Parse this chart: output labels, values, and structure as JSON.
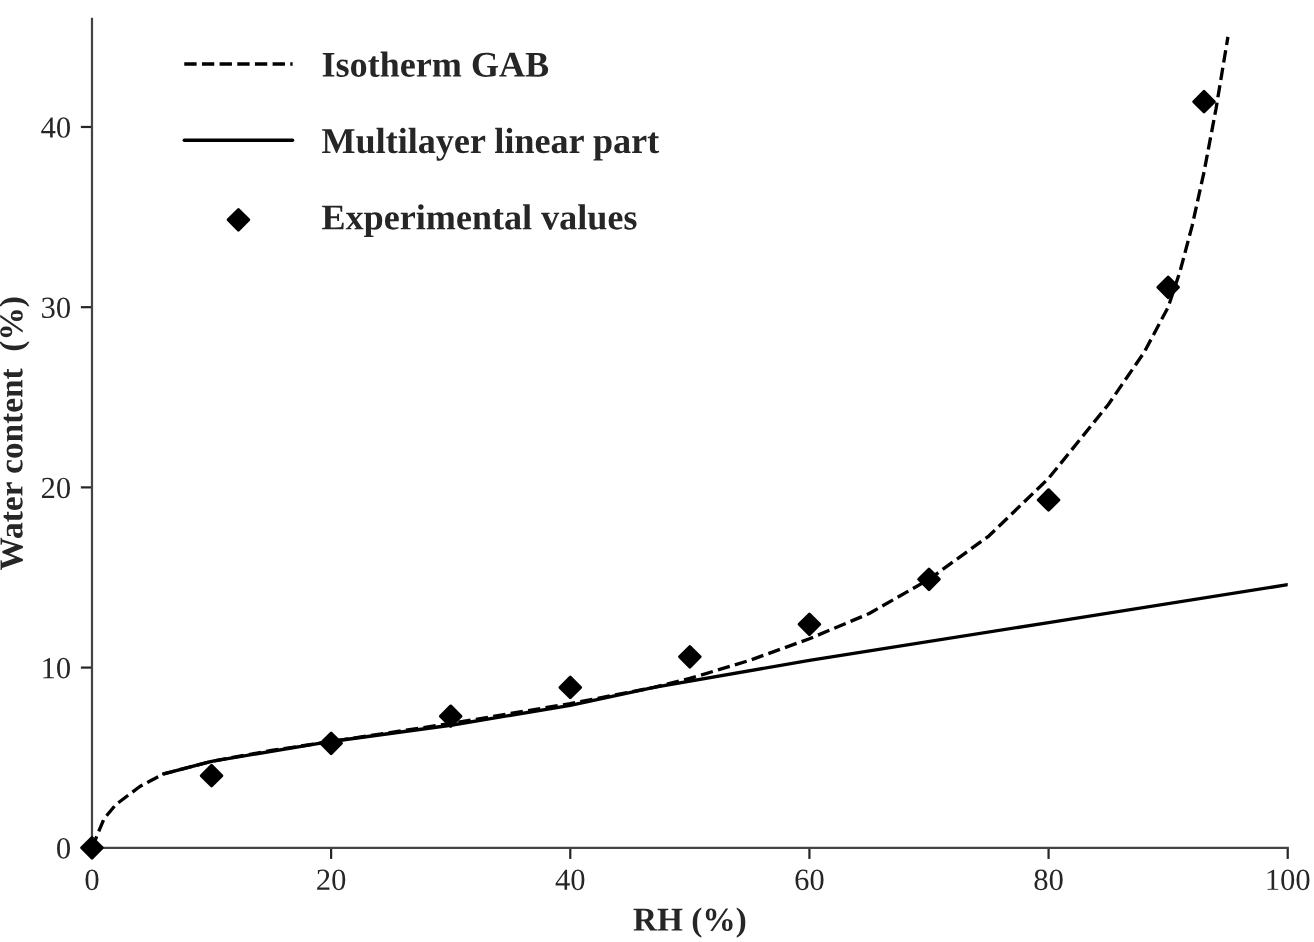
{
  "chart_data": {
    "type": "line",
    "xlabel": "RH (%)",
    "ylabel": "Water content  (%)",
    "xlim": [
      0,
      100
    ],
    "ylim": [
      0,
      46
    ],
    "xticks": [
      0,
      20,
      40,
      60,
      80,
      100
    ],
    "yticks": [
      0,
      10,
      20,
      30,
      40
    ],
    "grid": false,
    "legend": "top left",
    "series": [
      {
        "name": "Isotherm GAB",
        "line_style": "dashed",
        "color": "#000000",
        "x": [
          0,
          1,
          2,
          4,
          6,
          10,
          15,
          20,
          30,
          40,
          47,
          50,
          55,
          60,
          65,
          70,
          75,
          80,
          85,
          88,
          90,
          91,
          92,
          93,
          94,
          95
        ],
        "values": [
          0,
          1.6,
          2.4,
          3.4,
          4.1,
          4.8,
          5.4,
          5.9,
          6.9,
          8.0,
          8.9,
          9.4,
          10.4,
          11.6,
          13.0,
          14.9,
          17.3,
          20.5,
          24.6,
          27.5,
          30.0,
          32.0,
          34.5,
          37.5,
          41.0,
          45.0
        ]
      },
      {
        "name": "Multilayer linear part",
        "line_style": "solid",
        "color": "#000000",
        "x": [
          6,
          10,
          20,
          30,
          40,
          47,
          60,
          80,
          100
        ],
        "values": [
          4.1,
          4.8,
          5.9,
          6.8,
          7.9,
          8.9,
          10.4,
          12.5,
          14.6
        ]
      },
      {
        "name": "Experimental values",
        "type": "scatter",
        "marker": "diamond",
        "color": "#000000",
        "x": [
          0,
          10,
          20,
          30,
          40,
          50,
          60,
          70,
          80,
          90,
          93
        ],
        "values": [
          0,
          4.0,
          5.8,
          7.3,
          8.9,
          10.6,
          12.4,
          14.9,
          19.3,
          31.1,
          41.4
        ]
      }
    ]
  }
}
